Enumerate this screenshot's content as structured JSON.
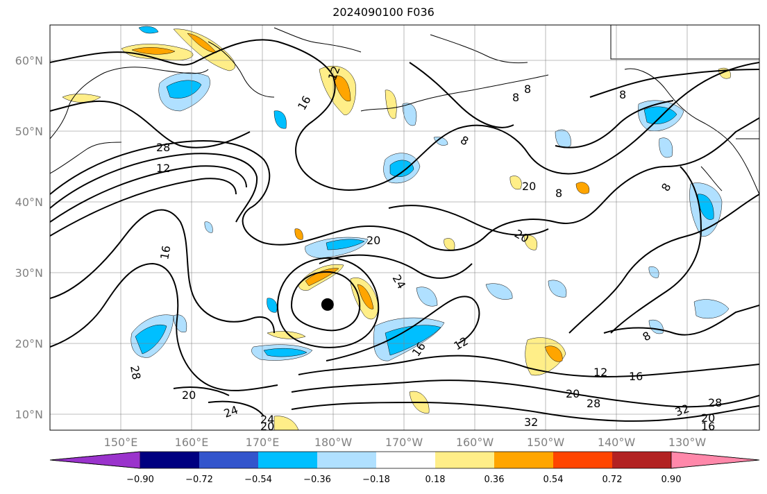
{
  "title": "2024090100 F036",
  "map": {
    "lat_ticks": [
      "60°N",
      "50°N",
      "40°N",
      "30°N",
      "20°N",
      "10°N"
    ],
    "lon_ticks": [
      "150°E",
      "160°E",
      "170°E",
      "180°W",
      "170°W",
      "160°W",
      "150°W",
      "140°W",
      "130°W"
    ],
    "marker": {
      "name": "storm-center",
      "lat": 25.5,
      "lon": -180.8,
      "color": "#000000"
    },
    "contour_labels": [
      "12",
      "16",
      "8",
      "8",
      "8",
      "8",
      "20",
      "8",
      "8",
      "28",
      "12",
      "20",
      "20",
      "16",
      "24",
      "8",
      "12",
      "16",
      "16",
      "12",
      "20",
      "28",
      "20",
      "24",
      "24",
      "20",
      "28",
      "32",
      "32",
      "28",
      "20",
      "16"
    ]
  },
  "colorbar": {
    "ticks": [
      "−0.90",
      "−0.72",
      "−0.54",
      "−0.36",
      "−0.18",
      "0.18",
      "0.36",
      "0.54",
      "0.72",
      "0.90"
    ],
    "colors": [
      "#9a33cc",
      "#000080",
      "#3355cc",
      "#00bfff",
      "#b0e0ff",
      "#ffffff",
      "#ffee88",
      "#ffa500",
      "#ff4500",
      "#b22222",
      "#ff88aa"
    ]
  }
}
